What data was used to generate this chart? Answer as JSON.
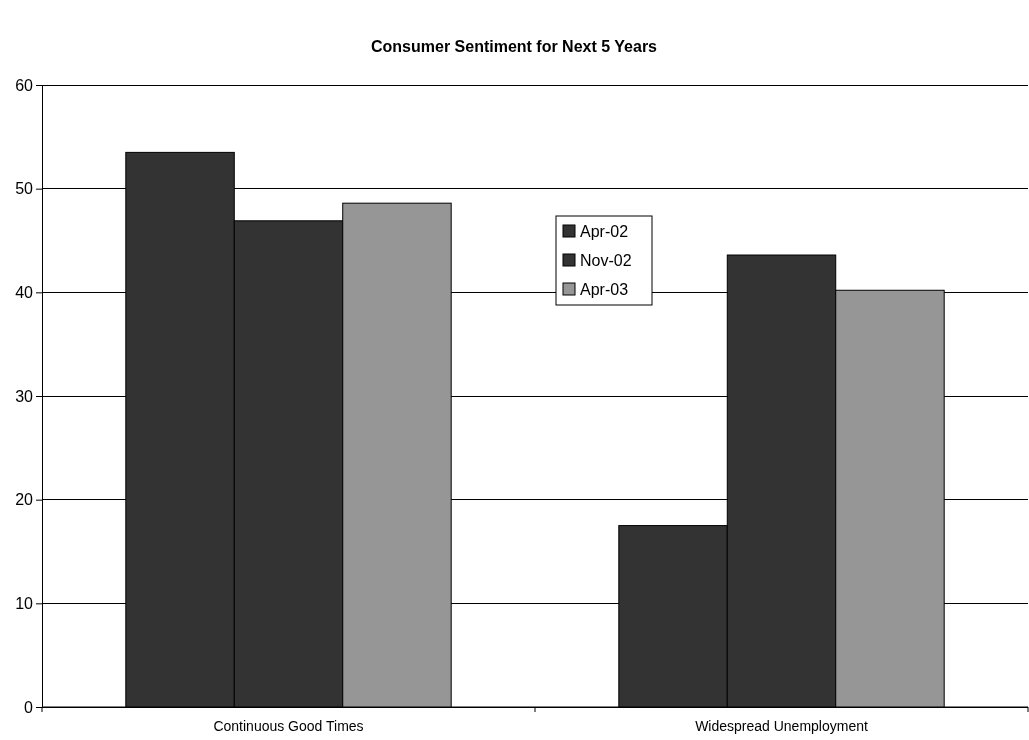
{
  "chart_data": {
    "type": "bar",
    "title": "Consumer Sentiment for Next 5 Years",
    "categories": [
      "Continuous Good Times",
      "Widespread Unemployment"
    ],
    "series": [
      {
        "name": "Apr-02",
        "color": "#333333",
        "values": [
          53.5,
          17.5
        ]
      },
      {
        "name": "Nov-02",
        "color": "#333333",
        "values": [
          46.9,
          43.6
        ]
      },
      {
        "name": "Apr-03",
        "color": "#969696",
        "values": [
          48.6,
          40.2
        ]
      }
    ],
    "ylim": [
      0,
      60
    ],
    "yticks": [
      0,
      10,
      20,
      30,
      40,
      50,
      60
    ],
    "grid": "y",
    "legend": "top"
  }
}
